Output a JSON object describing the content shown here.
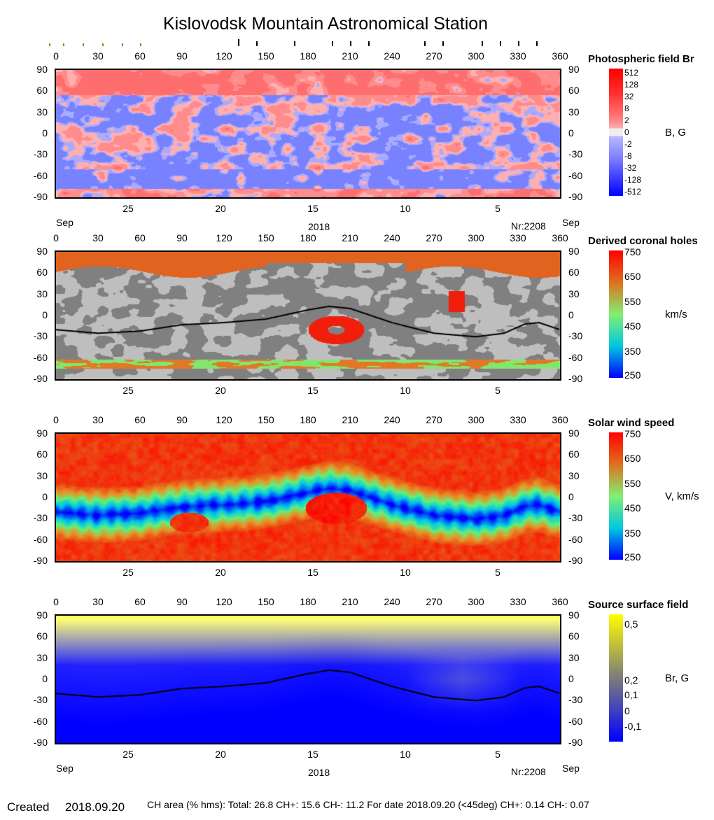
{
  "title": "Kislovodsk Mountain Astronomical Station",
  "carrington_rotation": "Nr:2208",
  "month_label": "Sep",
  "year_label": "2018",
  "footer": {
    "created_label": "Created",
    "created_date": "2018.09.20",
    "stats": "CH area (% hms): Total: 26.8 CH+: 15.6   CH-: 11.2    For date 2018.09.20 (<45deg) CH+: 0.14    CH-: 0.07"
  },
  "top_markers": {
    "olive_lon": [
      -5,
      5,
      19,
      33,
      47,
      60
    ],
    "black_lon": [
      130,
      143,
      170,
      197,
      210,
      223,
      263,
      276,
      304,
      317,
      330,
      343
    ]
  },
  "chart_data": [
    {
      "type": "heatmap",
      "title": "Photospheric field Br",
      "colorbar_label": "B, G",
      "colorbar_ticks": [
        "512",
        "128",
        "32",
        "8",
        "2",
        "0",
        "-2",
        "-8",
        "-32",
        "-128",
        "-512"
      ],
      "colors": {
        "positive": "#ff0000",
        "negative": "#0000ff",
        "zero": "#eeeeee"
      },
      "x_ticks": [
        "0",
        "30",
        "60",
        "90",
        "120",
        "150",
        "180",
        "210",
        "240",
        "270",
        "300",
        "330",
        "360"
      ],
      "y_ticks": [
        "90",
        "60",
        "30",
        "0",
        "-30",
        "-60",
        "-90"
      ],
      "date_ticks": [
        "25",
        "20",
        "15",
        "10",
        "5"
      ],
      "xlim": [
        0,
        360
      ],
      "ylim": [
        -90,
        90
      ]
    },
    {
      "type": "heatmap",
      "title": "Derived coronal holes",
      "colorbar_label": "km/s",
      "colorbar_ticks": [
        "750",
        "650",
        "550",
        "450",
        "350",
        "250"
      ],
      "x_ticks": [
        "0",
        "30",
        "60",
        "90",
        "120",
        "150",
        "180",
        "210",
        "240",
        "270",
        "300",
        "330",
        "360"
      ],
      "y_ticks": [
        "90",
        "60",
        "30",
        "0",
        "-30",
        "-60",
        "-90"
      ],
      "date_ticks": [
        "25",
        "20",
        "15",
        "10",
        "5"
      ],
      "xlim": [
        0,
        360
      ],
      "ylim": [
        -90,
        90
      ]
    },
    {
      "type": "heatmap",
      "title": "Solar wind speed",
      "colorbar_label": "V, km/s",
      "colorbar_ticks": [
        "750",
        "650",
        "550",
        "450",
        "350",
        "250"
      ],
      "x_ticks": [
        "0",
        "30",
        "60",
        "90",
        "120",
        "150",
        "180",
        "210",
        "240",
        "270",
        "300",
        "330",
        "360"
      ],
      "y_ticks": [
        "90",
        "60",
        "30",
        "0",
        "-30",
        "-60",
        "-90"
      ],
      "date_ticks": [
        "25",
        "20",
        "15",
        "10",
        "5"
      ],
      "xlim": [
        0,
        360
      ],
      "ylim": [
        -90,
        90
      ]
    },
    {
      "type": "heatmap",
      "title": "Source surface field",
      "colorbar_label": "Br, G",
      "colorbar_ticks": [
        "0,5",
        "0,2",
        "0,1",
        "0",
        "-0,1"
      ],
      "x_ticks": [
        "0",
        "30",
        "60",
        "90",
        "120",
        "150",
        "180",
        "210",
        "240",
        "270",
        "300",
        "330",
        "360"
      ],
      "y_ticks": [
        "90",
        "60",
        "30",
        "0",
        "-30",
        "-60",
        "-90"
      ],
      "date_ticks": [
        "25",
        "20",
        "15",
        "10",
        "5"
      ],
      "xlim": [
        0,
        360
      ],
      "ylim": [
        -90,
        90
      ]
    }
  ],
  "neutral_line": {
    "lon": [
      0,
      30,
      60,
      90,
      120,
      150,
      180,
      195,
      210,
      240,
      270,
      300,
      320,
      335,
      345,
      360
    ],
    "lat": [
      -20,
      -25,
      -22,
      -13,
      -10,
      -5,
      8,
      13,
      10,
      -10,
      -25,
      -30,
      -25,
      -12,
      -10,
      -20
    ]
  }
}
